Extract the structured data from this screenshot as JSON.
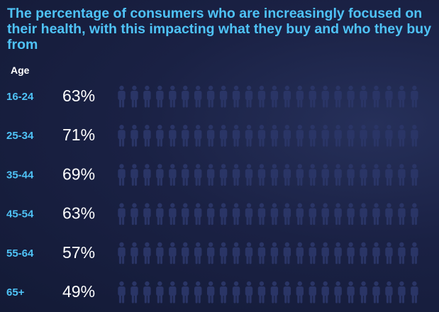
{
  "chart_data": {
    "type": "pictogram",
    "title": "The percentage of consumers who are increasingly focused on their health, with this impacting what they buy and who they buy from",
    "category_header": "Age",
    "categories": [
      "16-24",
      "25-34",
      "35-44",
      "45-54",
      "55-64",
      "65+"
    ],
    "values": [
      63,
      71,
      69,
      63,
      57,
      49
    ],
    "value_labels": [
      "63%",
      "71%",
      "69%",
      "63%",
      "57%",
      "49%"
    ],
    "icons_per_row": 24,
    "icon": "person-icon",
    "colors": {
      "filled": "#4fc3f7",
      "empty": "#2a3566",
      "category_text": "#4fc3f7",
      "value_text": "#ffffff",
      "title_text": "#4fc3f7"
    }
  }
}
